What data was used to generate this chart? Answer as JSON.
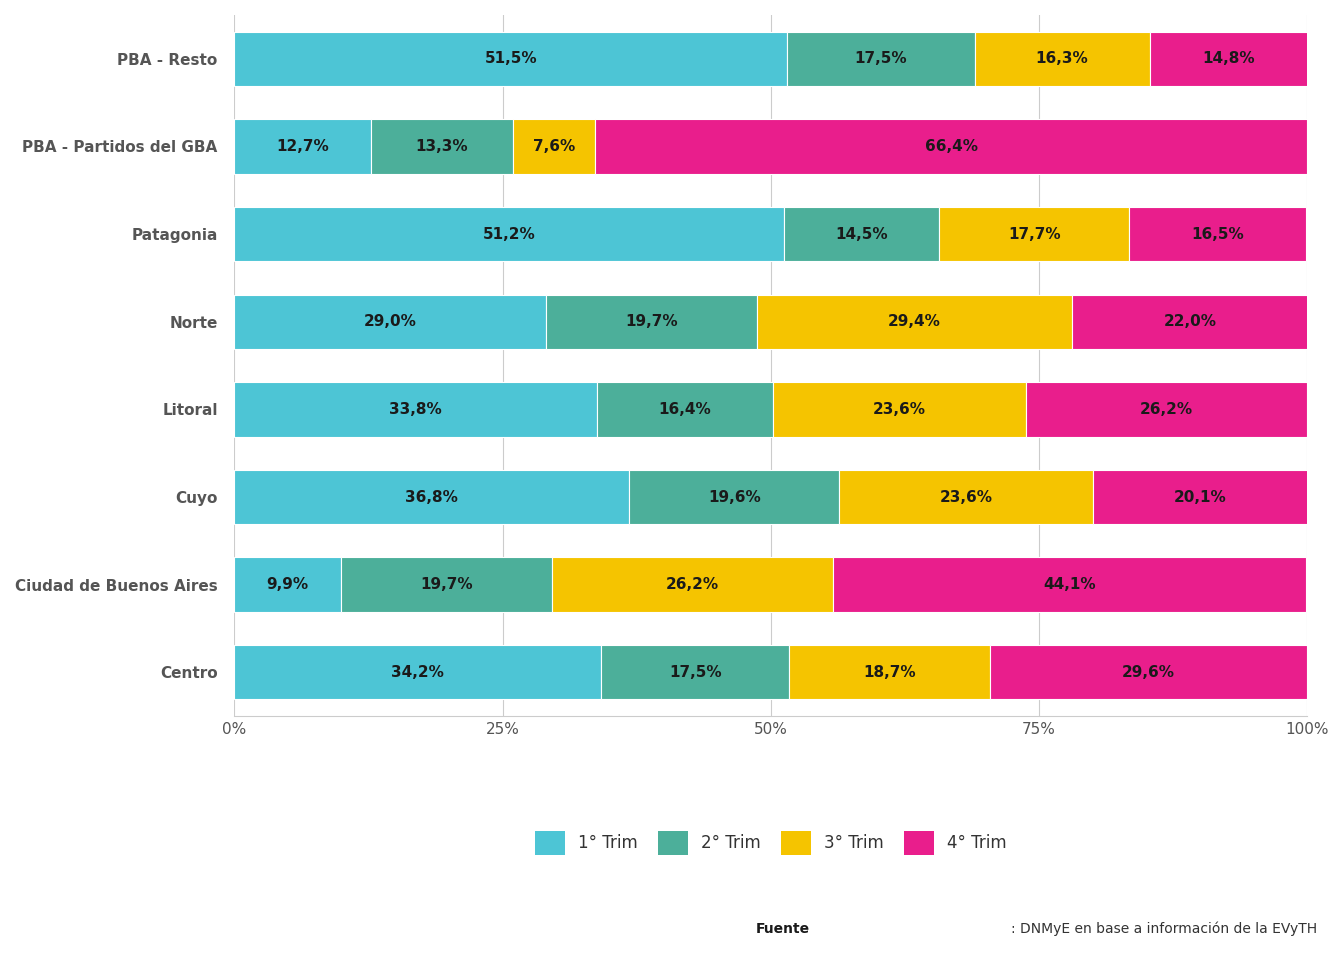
{
  "categories": [
    "Centro",
    "Ciudad de Buenos Aires",
    "Cuyo",
    "Litoral",
    "Norte",
    "Patagonia",
    "PBA - Partidos del GBA",
    "PBA - Resto"
  ],
  "series": {
    "1° Trim": [
      34.2,
      9.9,
      36.8,
      33.8,
      29.0,
      51.2,
      12.7,
      51.5
    ],
    "2° Trim": [
      17.5,
      19.7,
      19.6,
      16.4,
      19.7,
      14.5,
      13.3,
      17.5
    ],
    "3° Trim": [
      18.7,
      26.2,
      23.6,
      23.6,
      29.4,
      17.7,
      7.6,
      16.3
    ],
    "4° Trim": [
      29.6,
      44.1,
      20.1,
      26.2,
      22.0,
      16.5,
      66.4,
      14.8
    ]
  },
  "colors": {
    "1° Trim": "#4DC5D5",
    "2° Trim": "#4CAF9A",
    "3° Trim": "#F5C400",
    "4° Trim": "#E91E8C"
  },
  "background_color": "#FFFFFF",
  "bar_height": 0.62,
  "grid_color": "#CCCCCC",
  "label_color": "#1a1a1a",
  "ytick_color": "#555555",
  "xtick_color": "#555555",
  "legend_labels": [
    "1° Trim",
    "2° Trim",
    "3° Trim",
    "4° Trim"
  ],
  "label_fontsize": 11,
  "tick_fontsize": 11,
  "legend_fontsize": 12
}
